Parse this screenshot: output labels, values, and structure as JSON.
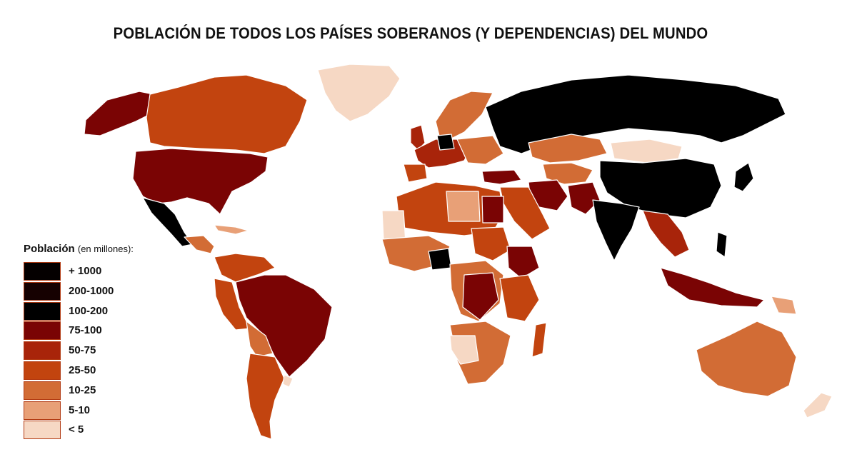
{
  "title": "POBLACIÓN DE TODOS LOS PAÍSES SOBERANOS (Y DEPENDENCIAS) DEL MUNDO",
  "legend": {
    "title": "Población",
    "subtitle": "(en millones):",
    "items": [
      {
        "label": "+ 1000",
        "color": "#050000"
      },
      {
        "label": "200-1000",
        "color": "#160101"
      },
      {
        "label": "100-200",
        "color": "#000000"
      },
      {
        "label": "75-100",
        "color": "#7a0404"
      },
      {
        "label": "50-75",
        "color": "#a8240a"
      },
      {
        "label": "25-50",
        "color": "#c2440f"
      },
      {
        "label": "10-25",
        "color": "#d26c35"
      },
      {
        "label": "5-10",
        "color": "#e8a077"
      },
      {
        "label": "< 5",
        "color": "#f6d8c4"
      }
    ]
  },
  "colors": {
    "lt5": "#f6d8c4",
    "r5_10": "#e8a077",
    "r10_25": "#d26c35",
    "r25_50": "#c2440f",
    "r50_75": "#a8240a",
    "r75_100": "#7a0404",
    "r100_200": "#000000",
    "r200_1000": "#160101",
    "r1000": "#050000"
  }
}
